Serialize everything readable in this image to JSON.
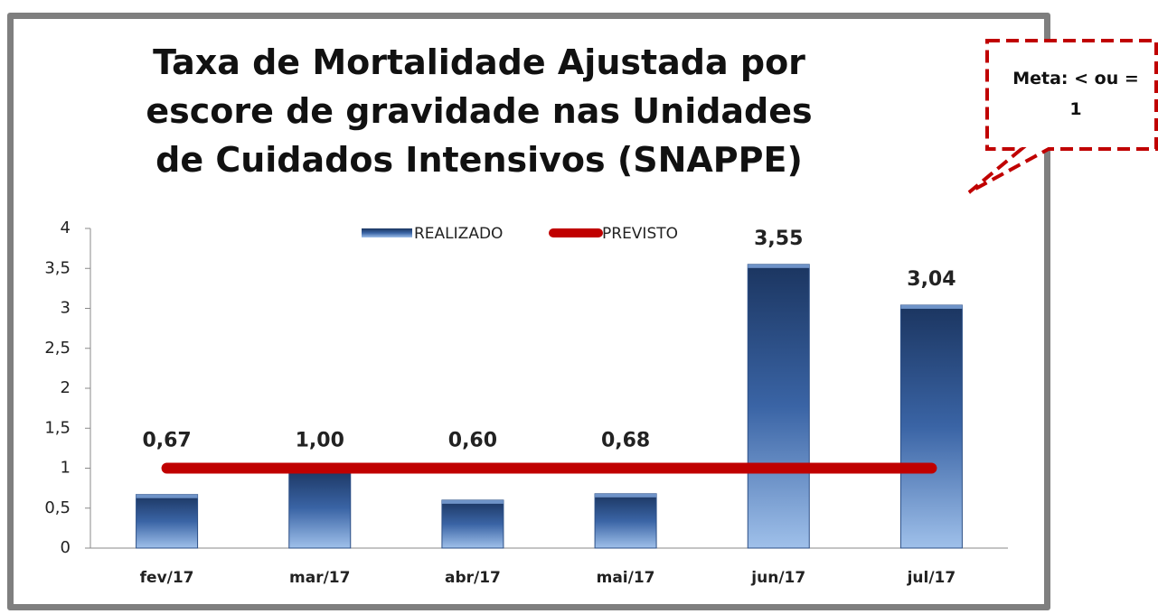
{
  "chart_data": {
    "type": "bar",
    "title": "Taxa de Mortalidade Ajustada por escore de gravidade nas Unidades de Cuidados Intensivos (SNAPPE)",
    "annotation": "Meta: < ou = 1",
    "categories": [
      "fev/17",
      "mar/17",
      "abr/17",
      "mai/17",
      "jun/17",
      "jul/17"
    ],
    "series": [
      {
        "name": "REALIZADO",
        "type": "bar",
        "color": "#2c4f86",
        "values": [
          0.67,
          1.0,
          0.6,
          0.68,
          3.55,
          3.04
        ],
        "value_labels": [
          "0,67",
          "1,00",
          "0,60",
          "0,68",
          "3,55",
          "3,04"
        ]
      },
      {
        "name": "PREVISTO",
        "type": "line",
        "color": "#c00000",
        "values": [
          1,
          1,
          1,
          1,
          1,
          1
        ]
      }
    ],
    "ylim": [
      0,
      4
    ],
    "yticks": [
      0,
      {
        "value": 0.5,
        "label": "0,5"
      },
      1,
      {
        "value": 1.5,
        "label": "1,5"
      },
      2,
      {
        "value": 2.5,
        "label": "2,5"
      },
      3,
      {
        "value": 3.5,
        "label": "3,5"
      },
      4
    ],
    "legend": "top"
  }
}
